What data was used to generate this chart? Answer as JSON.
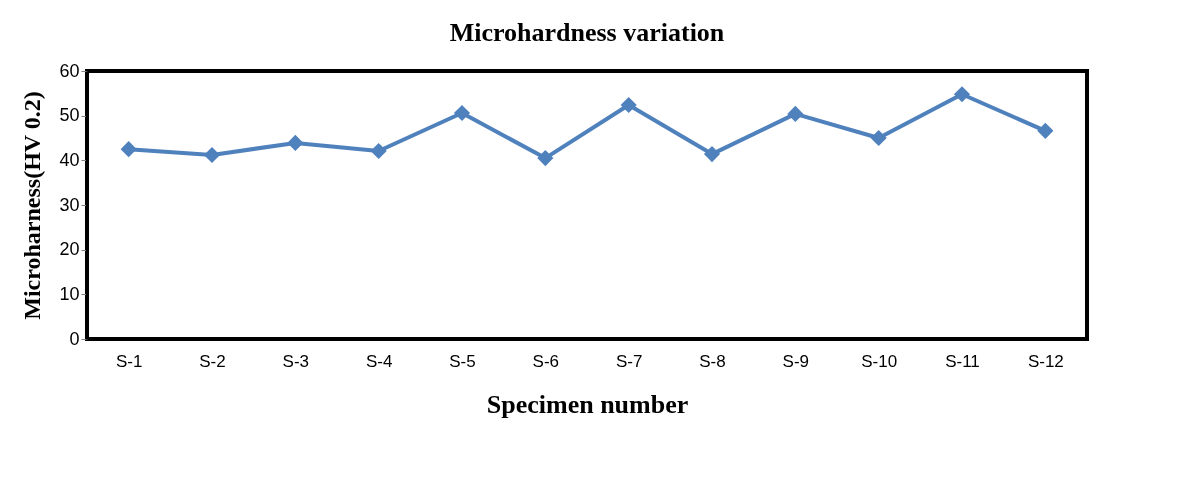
{
  "chart_data": {
    "type": "line",
    "title": "Microhardness variation",
    "xlabel": "Specimen number",
    "ylabel": "Microharness(HV 0.2)",
    "categories": [
      "S-1",
      "S-2",
      "S-3",
      "S-4",
      "S-5",
      "S-6",
      "S-7",
      "S-8",
      "S-9",
      "S-10",
      "S-11",
      "S-12"
    ],
    "series": [
      {
        "color": "#4f81bd",
        "values": [
          42.5,
          41.2,
          43.9,
          42.1,
          50.6,
          40.5,
          52.4,
          41.4,
          50.4,
          45.0,
          54.8,
          46.6
        ]
      }
    ],
    "ylim": [
      0,
      60
    ],
    "yticks": [
      0,
      10,
      20,
      30,
      40,
      50,
      60
    ],
    "marker": "diamond",
    "line_style": "solid",
    "grid": false
  }
}
